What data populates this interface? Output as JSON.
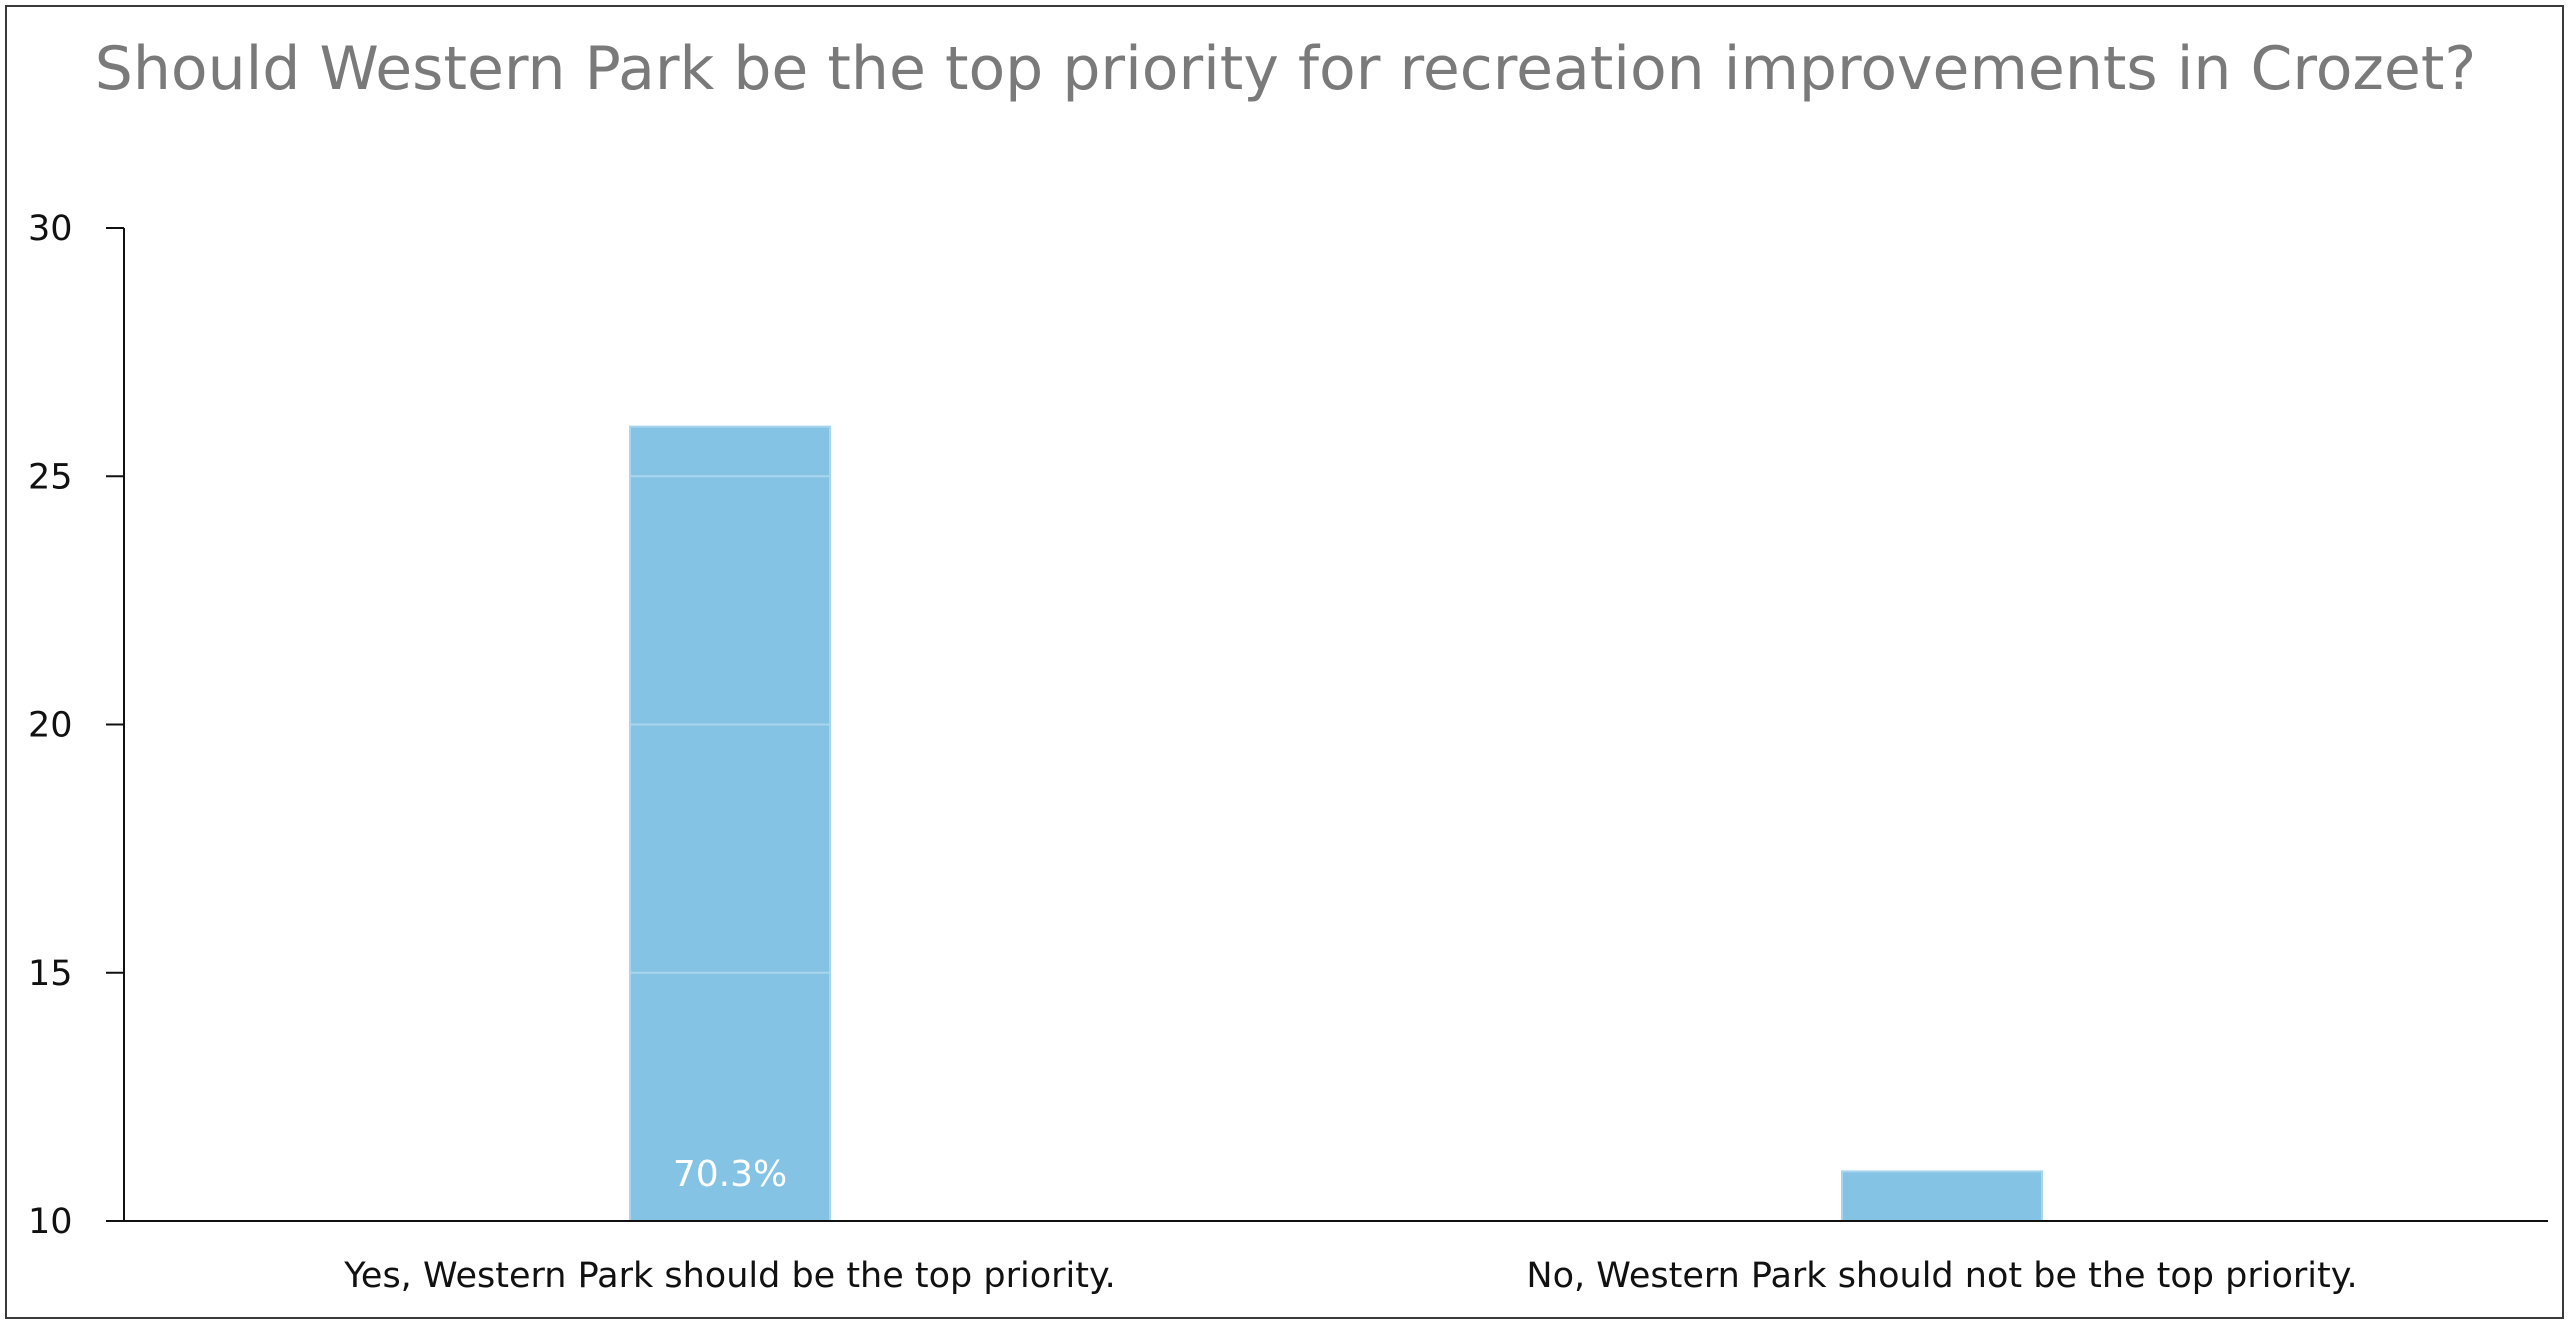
{
  "chart_data": {
    "type": "bar",
    "title": "Should Western Park be the top priority for recreation improvements in Crozet?",
    "categories": [
      "Yes, Western Park should be the top priority.",
      "No, Western Park should not be the top priority."
    ],
    "values": [
      26,
      11
    ],
    "data_labels": [
      "70.3%",
      ""
    ],
    "ylim": [
      10,
      30
    ],
    "yticks": [
      10,
      15,
      20,
      25,
      30
    ],
    "xlabel": "",
    "ylabel": "",
    "grid": false,
    "legend": "none",
    "colors": {
      "bar": "#85C3E4",
      "bar_line": "#A9D6EE",
      "axis": "#111111",
      "title": "#7a7a7a",
      "frame": "#3a3a3a"
    }
  }
}
